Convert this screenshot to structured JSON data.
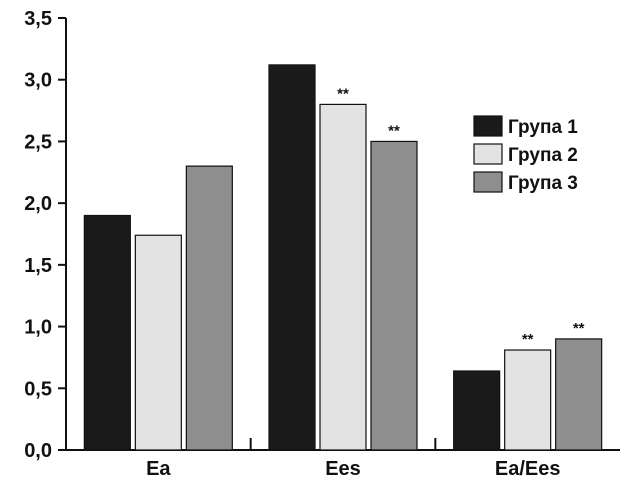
{
  "chart_data": {
    "type": "bar",
    "categories": [
      "Ea",
      "Ees",
      "Ea/Ees"
    ],
    "series": [
      {
        "name": "Група 1",
        "values": [
          1.9,
          3.12,
          0.64
        ],
        "color": "#1a1a1a"
      },
      {
        "name": "Група 2",
        "values": [
          1.74,
          2.8,
          0.81
        ],
        "color": "#e3e3e3"
      },
      {
        "name": "Група 3",
        "values": [
          2.3,
          2.5,
          0.9
        ],
        "color": "#8e8e8e"
      }
    ],
    "annotations": [
      {
        "category": 1,
        "series": 1,
        "text": "**"
      },
      {
        "category": 1,
        "series": 2,
        "text": "**"
      },
      {
        "category": 2,
        "series": 1,
        "text": "**"
      },
      {
        "category": 2,
        "series": 2,
        "text": "**"
      }
    ],
    "ylim": [
      0,
      3.5
    ],
    "yticks": [
      "0,0",
      "0,5",
      "1,0",
      "1,5",
      "2,0",
      "2,5",
      "3,0",
      "3,5"
    ],
    "legend_position": "right",
    "grid": false
  }
}
